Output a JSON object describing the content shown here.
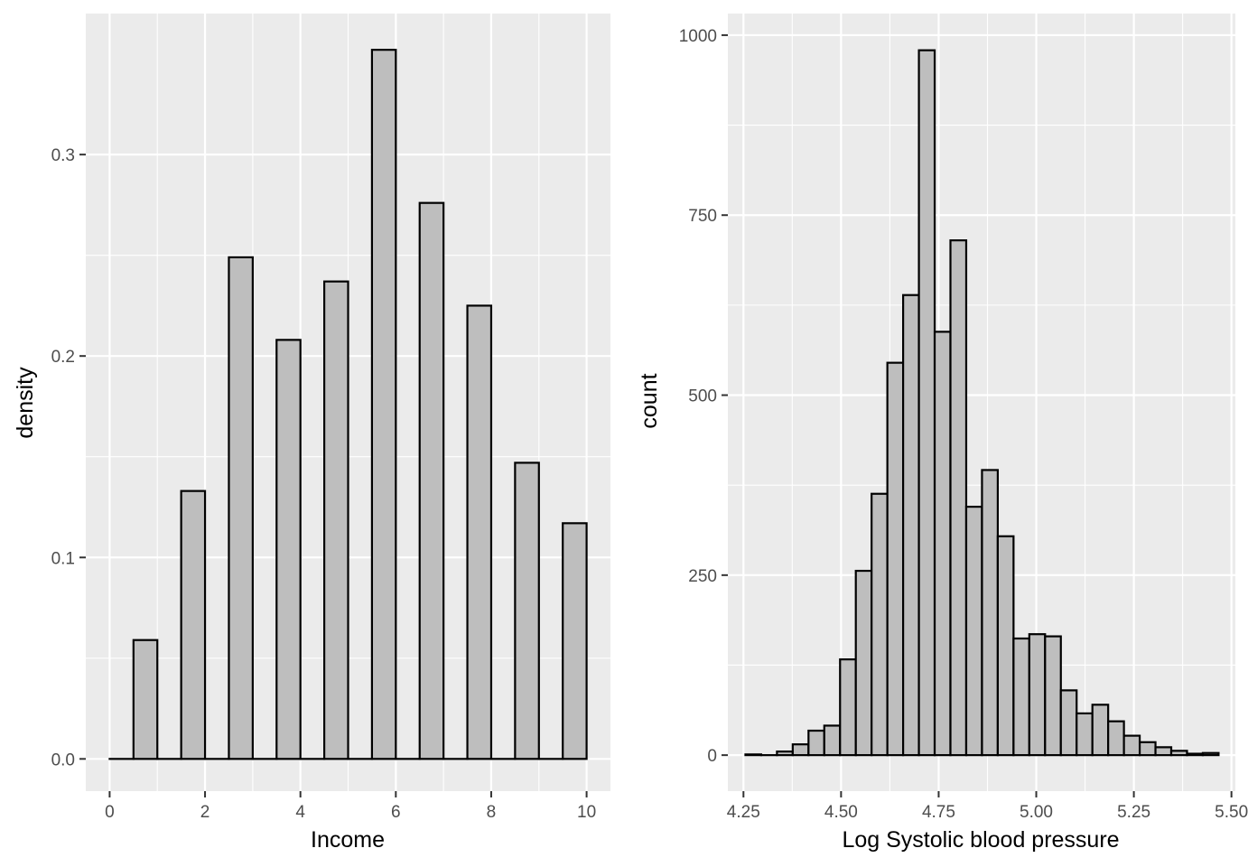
{
  "chart_data": [
    {
      "type": "bar",
      "xlabel": "Income",
      "ylabel": "density",
      "xlim": [
        -0.5,
        10.5
      ],
      "ylim": [
        -0.016,
        0.37
      ],
      "x_ticks": [
        0,
        2,
        4,
        6,
        8,
        10
      ],
      "x_tick_labels": [
        "0",
        "2",
        "4",
        "6",
        "8",
        "10"
      ],
      "y_ticks": [
        0.0,
        0.1,
        0.2,
        0.3
      ],
      "y_tick_labels": [
        "0.0",
        "0.1",
        "0.2",
        "0.3"
      ],
      "bin_width": 0.5,
      "bins": [
        {
          "x0": 0.0,
          "x1": 0.5,
          "value": 0.0
        },
        {
          "x0": 0.5,
          "x1": 1.0,
          "value": 0.059
        },
        {
          "x0": 1.0,
          "x1": 1.5,
          "value": 0.0
        },
        {
          "x0": 1.5,
          "x1": 2.0,
          "value": 0.133
        },
        {
          "x0": 2.0,
          "x1": 2.5,
          "value": 0.0
        },
        {
          "x0": 2.5,
          "x1": 3.0,
          "value": 0.249
        },
        {
          "x0": 3.0,
          "x1": 3.5,
          "value": 0.0
        },
        {
          "x0": 3.5,
          "x1": 4.0,
          "value": 0.208
        },
        {
          "x0": 4.0,
          "x1": 4.5,
          "value": 0.0
        },
        {
          "x0": 4.5,
          "x1": 5.0,
          "value": 0.237
        },
        {
          "x0": 5.0,
          "x1": 5.5,
          "value": 0.0
        },
        {
          "x0": 5.5,
          "x1": 6.0,
          "value": 0.352
        },
        {
          "x0": 6.0,
          "x1": 6.5,
          "value": 0.0
        },
        {
          "x0": 6.5,
          "x1": 7.0,
          "value": 0.276
        },
        {
          "x0": 7.0,
          "x1": 7.5,
          "value": 0.0
        },
        {
          "x0": 7.5,
          "x1": 8.0,
          "value": 0.225
        },
        {
          "x0": 8.0,
          "x1": 8.5,
          "value": 0.0
        },
        {
          "x0": 8.5,
          "x1": 9.0,
          "value": 0.147
        },
        {
          "x0": 9.0,
          "x1": 9.5,
          "value": 0.0
        },
        {
          "x0": 9.5,
          "x1": 10.0,
          "value": 0.117
        }
      ],
      "grid": true,
      "colors": {
        "fill": "#bebebe",
        "outline": "#000000",
        "panel": "#ebebeb",
        "grid": "#ffffff"
      }
    },
    {
      "type": "bar",
      "xlabel": "Log Systolic blood pressure",
      "ylabel": "count",
      "xlim": [
        4.21,
        5.51
      ],
      "ylim": [
        -50,
        1030
      ],
      "x_ticks": [
        4.25,
        4.5,
        4.75,
        5.0,
        5.25,
        5.5
      ],
      "x_tick_labels": [
        "4.25",
        "4.50",
        "4.75",
        "5.00",
        "5.25",
        "5.50"
      ],
      "y_ticks": [
        0,
        250,
        500,
        750,
        1000
      ],
      "y_tick_labels": [
        "0",
        "250",
        "500",
        "750",
        "1000"
      ],
      "bin_width": 0.0404,
      "bins": [
        {
          "x0": 4.255,
          "x1": 4.2954,
          "value": 1
        },
        {
          "x0": 4.2954,
          "x1": 4.3358,
          "value": 0
        },
        {
          "x0": 4.3358,
          "x1": 4.3762,
          "value": 5
        },
        {
          "x0": 4.3762,
          "x1": 4.4166,
          "value": 15
        },
        {
          "x0": 4.4166,
          "x1": 4.457,
          "value": 34
        },
        {
          "x0": 4.457,
          "x1": 4.4974,
          "value": 41
        },
        {
          "x0": 4.4974,
          "x1": 4.5378,
          "value": 133
        },
        {
          "x0": 4.5378,
          "x1": 4.5782,
          "value": 256
        },
        {
          "x0": 4.5782,
          "x1": 4.6186,
          "value": 363
        },
        {
          "x0": 4.6186,
          "x1": 4.659,
          "value": 545
        },
        {
          "x0": 4.659,
          "x1": 4.6994,
          "value": 639
        },
        {
          "x0": 4.6994,
          "x1": 4.7398,
          "value": 979
        },
        {
          "x0": 4.7398,
          "x1": 4.7802,
          "value": 588
        },
        {
          "x0": 4.7802,
          "x1": 4.8206,
          "value": 715
        },
        {
          "x0": 4.8206,
          "x1": 4.861,
          "value": 345
        },
        {
          "x0": 4.861,
          "x1": 4.9014,
          "value": 396
        },
        {
          "x0": 4.9014,
          "x1": 4.9418,
          "value": 304
        },
        {
          "x0": 4.9418,
          "x1": 4.9822,
          "value": 162
        },
        {
          "x0": 4.9822,
          "x1": 5.0226,
          "value": 168
        },
        {
          "x0": 5.0226,
          "x1": 5.063,
          "value": 165
        },
        {
          "x0": 5.063,
          "x1": 5.1034,
          "value": 90
        },
        {
          "x0": 5.1034,
          "x1": 5.1438,
          "value": 58
        },
        {
          "x0": 5.1438,
          "x1": 5.1842,
          "value": 70
        },
        {
          "x0": 5.1842,
          "x1": 5.2246,
          "value": 47
        },
        {
          "x0": 5.2246,
          "x1": 5.265,
          "value": 27
        },
        {
          "x0": 5.265,
          "x1": 5.3054,
          "value": 18
        },
        {
          "x0": 5.3054,
          "x1": 5.3458,
          "value": 11
        },
        {
          "x0": 5.3458,
          "x1": 5.3862,
          "value": 6
        },
        {
          "x0": 5.3862,
          "x1": 5.4266,
          "value": 2
        },
        {
          "x0": 5.4266,
          "x1": 5.467,
          "value": 3
        }
      ],
      "grid": true,
      "colors": {
        "fill": "#bebebe",
        "outline": "#000000",
        "panel": "#ebebeb",
        "grid": "#ffffff"
      }
    }
  ]
}
